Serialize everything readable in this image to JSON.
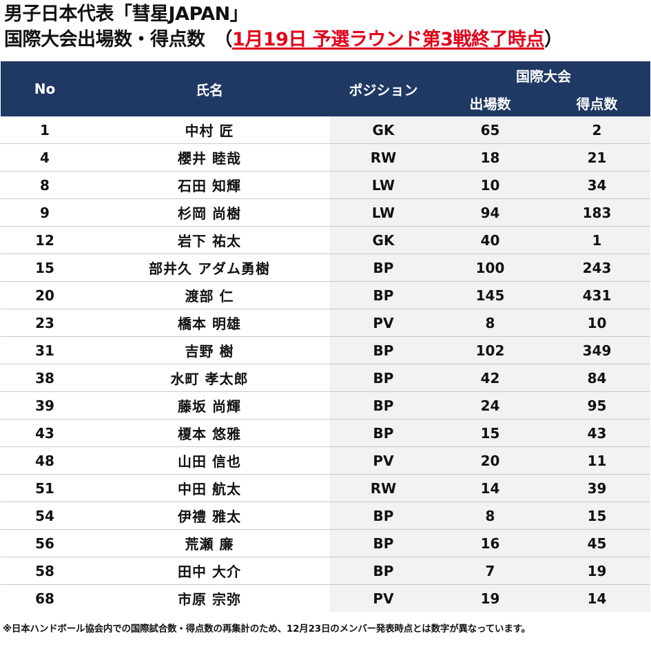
{
  "title": {
    "line1": "男子日本代表「彗星JAPAN」",
    "line2_prefix": "国際大会出場数・得点数　（",
    "line2_red": "1月19日 予選ラウンド第3戦終了時点",
    "line2_suffix": "）"
  },
  "table": {
    "headers": {
      "no": "No",
      "name": "氏名",
      "position": "ポジション",
      "group": "国際大会",
      "caps": "出場数",
      "goals": "得点数"
    },
    "rows": [
      {
        "no": "1",
        "name": "中村 匠",
        "position": "GK",
        "caps": "65",
        "goals": "2"
      },
      {
        "no": "4",
        "name": "櫻井 睦哉",
        "position": "RW",
        "caps": "18",
        "goals": "21"
      },
      {
        "no": "8",
        "name": "石田 知輝",
        "position": "LW",
        "caps": "10",
        "goals": "34"
      },
      {
        "no": "9",
        "name": "杉岡 尚樹",
        "position": "LW",
        "caps": "94",
        "goals": "183"
      },
      {
        "no": "12",
        "name": "岩下 祐太",
        "position": "GK",
        "caps": "40",
        "goals": "1"
      },
      {
        "no": "15",
        "name": "部井久 アダム勇樹",
        "position": "BP",
        "caps": "100",
        "goals": "243"
      },
      {
        "no": "20",
        "name": "渡部 仁",
        "position": "BP",
        "caps": "145",
        "goals": "431"
      },
      {
        "no": "23",
        "name": "橋本 明雄",
        "position": "PV",
        "caps": "8",
        "goals": "10"
      },
      {
        "no": "31",
        "name": "吉野 樹",
        "position": "BP",
        "caps": "102",
        "goals": "349"
      },
      {
        "no": "38",
        "name": "水町 孝太郎",
        "position": "BP",
        "caps": "42",
        "goals": "84"
      },
      {
        "no": "39",
        "name": "藤坂 尚輝",
        "position": "BP",
        "caps": "24",
        "goals": "95"
      },
      {
        "no": "43",
        "name": "榎本 悠雅",
        "position": "BP",
        "caps": "15",
        "goals": "43"
      },
      {
        "no": "48",
        "name": "山田 信也",
        "position": "PV",
        "caps": "20",
        "goals": "11"
      },
      {
        "no": "51",
        "name": "中田 航太",
        "position": "RW",
        "caps": "14",
        "goals": "39"
      },
      {
        "no": "54",
        "name": "伊禮 雅太",
        "position": "BP",
        "caps": "8",
        "goals": "15"
      },
      {
        "no": "56",
        "name": "荒瀬 廉",
        "position": "BP",
        "caps": "16",
        "goals": "45"
      },
      {
        "no": "58",
        "name": "田中 大介",
        "position": "BP",
        "caps": "7",
        "goals": "19"
      },
      {
        "no": "68",
        "name": "市原 宗弥",
        "position": "PV",
        "caps": "19",
        "goals": "14"
      }
    ]
  },
  "footnote": "※日本ハンドボール協会内での国際試合数・得点数の再集計のため、12月23日のメンバー発表時点とは数字が異なっています。",
  "colors": {
    "header_bg": "#1f3864",
    "header_text": "#ffffff",
    "highlight_red": "#e0001a",
    "shaded_column": "#f2f2f2"
  }
}
